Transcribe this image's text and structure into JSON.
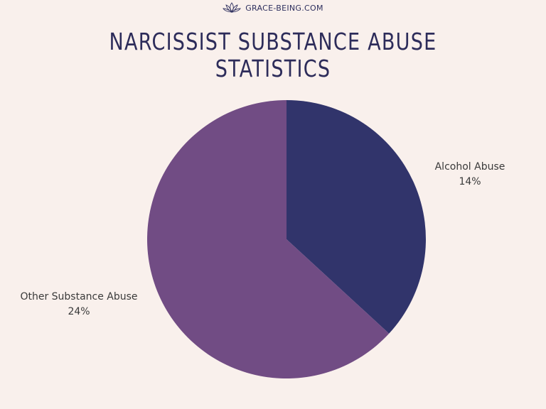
{
  "header": {
    "brand": "GRACE-BEING.COM",
    "logo_icon": "lotus-icon"
  },
  "chart_data": {
    "type": "pie",
    "title_lines": [
      "NARCISSIST SUBSTANCE ABUSE",
      "STATISTICS"
    ],
    "categories": [
      "Alcohol Abuse",
      "Other Substance Abuse"
    ],
    "values": [
      14,
      24
    ],
    "value_labels": [
      "14%",
      "24%"
    ],
    "start_angle_deg": 0,
    "direction": "clockwise",
    "colors": [
      "#31346b",
      "#714c84"
    ],
    "legend": "none"
  }
}
